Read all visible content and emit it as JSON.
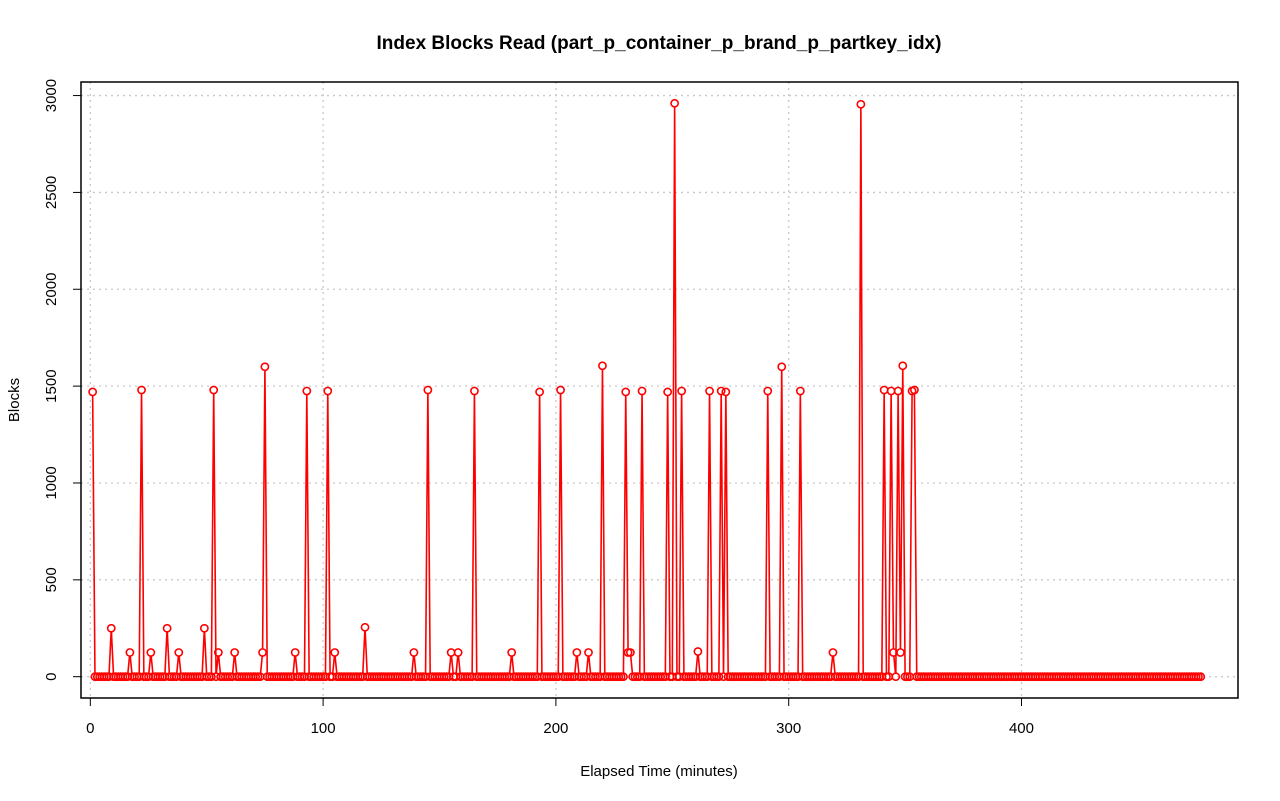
{
  "chart_data": {
    "type": "line",
    "title": "Index Blocks Read (part_p_container_p_brand_p_partkey_idx)",
    "xlabel": "Elapsed Time (minutes)",
    "ylabel": "Blocks",
    "xlim": [
      -4,
      493
    ],
    "ylim": [
      -110,
      3070
    ],
    "xticks": [
      0,
      100,
      200,
      300,
      400
    ],
    "yticks": [
      0,
      500,
      1000,
      1500,
      2000,
      2500,
      3000
    ],
    "grid": true,
    "color": "#ff0000",
    "x_range": [
      1,
      477
    ],
    "baseline_value": 0,
    "nonzero_points": [
      [
        1,
        1470
      ],
      [
        9,
        250
      ],
      [
        17,
        125
      ],
      [
        22,
        1480
      ],
      [
        26,
        125
      ],
      [
        33,
        250
      ],
      [
        38,
        125
      ],
      [
        49,
        250
      ],
      [
        53,
        1480
      ],
      [
        55,
        125
      ],
      [
        62,
        125
      ],
      [
        74,
        125
      ],
      [
        75,
        1600
      ],
      [
        88,
        125
      ],
      [
        93,
        1475
      ],
      [
        102,
        1475
      ],
      [
        105,
        125
      ],
      [
        118,
        255
      ],
      [
        139,
        125
      ],
      [
        145,
        1480
      ],
      [
        155,
        125
      ],
      [
        158,
        125
      ],
      [
        165,
        1475
      ],
      [
        181,
        125
      ],
      [
        193,
        1470
      ],
      [
        202,
        1480
      ],
      [
        209,
        125
      ],
      [
        214,
        125
      ],
      [
        220,
        1605
      ],
      [
        230,
        1470
      ],
      [
        231,
        125
      ],
      [
        232,
        125
      ],
      [
        237,
        1475
      ],
      [
        248,
        1470
      ],
      [
        251,
        2960
      ],
      [
        254,
        1475
      ],
      [
        261,
        130
      ],
      [
        266,
        1475
      ],
      [
        271,
        1475
      ],
      [
        273,
        1470
      ],
      [
        291,
        1475
      ],
      [
        297,
        1600
      ],
      [
        305,
        1475
      ],
      [
        319,
        125
      ],
      [
        331,
        2955
      ],
      [
        341,
        1480
      ],
      [
        344,
        1475
      ],
      [
        345,
        125
      ],
      [
        347,
        1475
      ],
      [
        348,
        125
      ],
      [
        349,
        1605
      ],
      [
        353,
        1475
      ],
      [
        354,
        1480
      ]
    ]
  }
}
